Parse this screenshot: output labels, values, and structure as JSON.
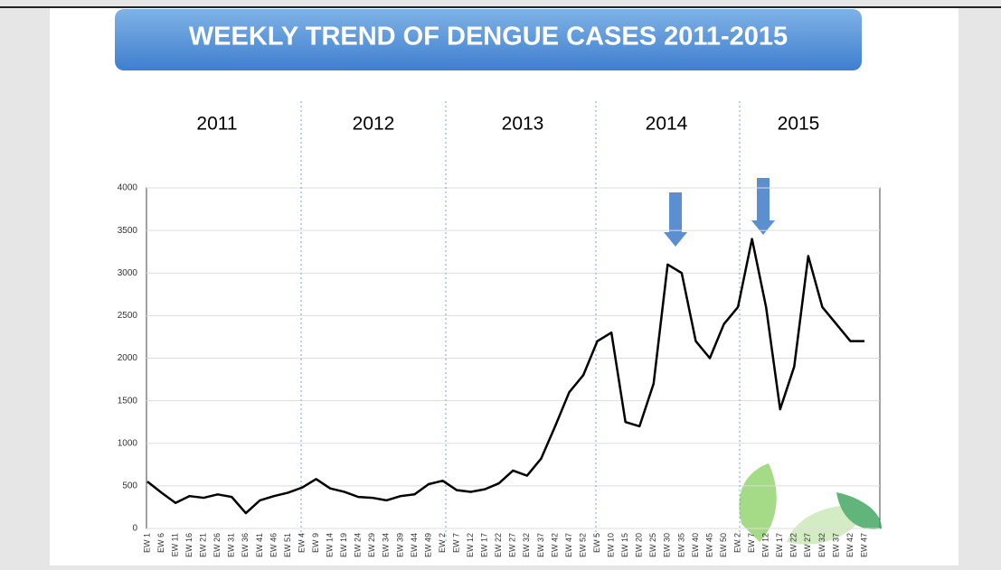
{
  "chart_data": {
    "type": "line",
    "title": "WEEKLY TREND OF DENGUE CASES 2011-2015",
    "annotations": [
      "2011",
      "2012",
      "2013",
      "2014",
      "2015"
    ],
    "categories": [
      "EW 1",
      "EW 6",
      "EW 11",
      "EW 16",
      "EW 21",
      "EW 26",
      "EW 31",
      "EW 36",
      "EW 41",
      "EW 46",
      "EW 51",
      "EW 4",
      "EW 9",
      "EW 14",
      "EW 19",
      "EW 24",
      "EW 29",
      "EW 34",
      "EW 39",
      "EW 44",
      "EW 49",
      "EW 2",
      "EW 7",
      "EW 12",
      "EW 17",
      "EW 22",
      "EW 27",
      "EW 32",
      "EW 37",
      "EW 42",
      "EW 47",
      "EW 52",
      "EW 5",
      "EW 10",
      "EW 15",
      "EW 20",
      "EW 25",
      "EW 30",
      "EW 35",
      "EW 40",
      "EW 45",
      "EW 50",
      "EW 2",
      "EW 7",
      "EW 12",
      "EW 17",
      "EW 22",
      "EW 27",
      "EW 32",
      "EW 37",
      "EW 42",
      "EW 47"
    ],
    "series": [
      {
        "color": "#000000",
        "values": [
          550,
          420,
          300,
          380,
          360,
          400,
          370,
          180,
          330,
          380,
          420,
          480,
          580,
          470,
          430,
          370,
          360,
          330,
          380,
          400,
          520,
          560,
          450,
          430,
          460,
          530,
          680,
          620,
          820,
          1200,
          1600,
          1800,
          2200,
          2300,
          1250,
          1200,
          1700,
          3100,
          3000,
          2200,
          2000,
          2400,
          2600,
          3400,
          2600,
          1400,
          1900,
          3200,
          2600,
          2400,
          2200,
          2200
        ]
      }
    ],
    "ylim": [
      0,
      4000
    ],
    "yticks": [
      0,
      500,
      1000,
      1500,
      2000,
      2500,
      3000,
      3500,
      4000
    ],
    "grid": true
  }
}
